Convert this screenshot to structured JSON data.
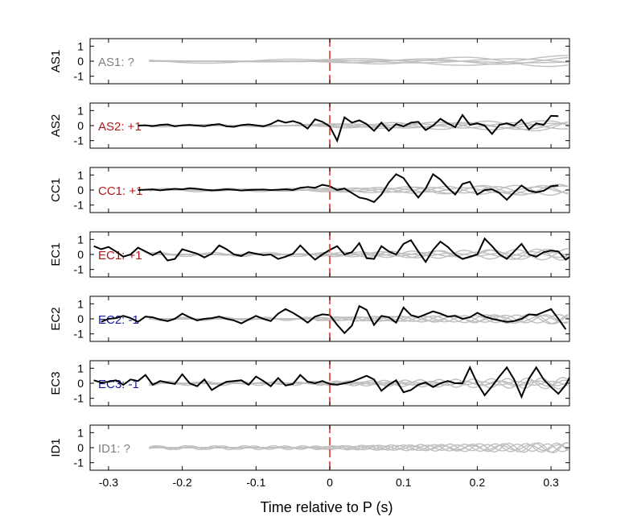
{
  "chart_data": {
    "type": "line",
    "xlabel": "Time relative to P (s)",
    "xlim": [
      -0.325,
      0.325
    ],
    "ylim": [
      -1.5,
      1.5
    ],
    "xticks": [
      -0.3,
      -0.2,
      -0.1,
      0,
      0.1,
      0.2,
      0.3
    ],
    "xtick_labels": [
      "-0.3",
      "-0.2",
      "-0.1",
      "0",
      "0.1",
      "0.2",
      "0.3"
    ],
    "yticks": [
      -1,
      0,
      1
    ],
    "ytick_labels": [
      "-1",
      "0",
      "1"
    ],
    "marker_x": 0,
    "colors": {
      "background_trace": "#bfbfbf",
      "main_trace": "#000000",
      "marker": "#e8332a",
      "positive": "#b01818",
      "negative": "#1a1aaa",
      "unknown": "#808080"
    },
    "panels": [
      {
        "station": "AS1",
        "annotation": "AS1: ?",
        "polarity": "unknown",
        "main": null
      },
      {
        "station": "AS2",
        "annotation": "AS2: +1",
        "polarity": "positive",
        "main": {
          "t0": -0.26,
          "dt": 0.01,
          "values": [
            0.0,
            0.02,
            -0.03,
            0.05,
            0.08,
            -0.05,
            0.02,
            0.05,
            0.0,
            -0.04,
            0.05,
            0.1,
            -0.05,
            -0.08,
            0.03,
            0.08,
            0.02,
            -0.05,
            0.1,
            0.35,
            0.2,
            0.3,
            0.15,
            -0.2,
            0.42,
            0.25,
            -0.05,
            -1.0,
            0.55,
            0.2,
            0.35,
            0.1,
            -0.35,
            0.2,
            -0.35,
            0.1,
            -0.05,
            0.2,
            0.25,
            -0.3,
            0.0,
            0.45,
            0.15,
            -0.1,
            0.7,
            0.05,
            0.15,
            0.0,
            -0.55,
            0.05,
            0.15,
            0.0,
            0.4,
            -0.25,
            0.15,
            0.05,
            0.65,
            0.63
          ]
        }
      },
      {
        "station": "CC1",
        "annotation": "CC1: +1",
        "polarity": "positive",
        "main": {
          "t0": -0.26,
          "dt": 0.01,
          "values": [
            0.0,
            0.02,
            0.05,
            -0.02,
            0.03,
            0.08,
            0.05,
            0.12,
            0.08,
            0.02,
            -0.02,
            0.0,
            0.05,
            0.02,
            -0.03,
            0.0,
            0.02,
            0.03,
            0.0,
            0.02,
            0.05,
            0.0,
            0.15,
            0.2,
            0.15,
            0.35,
            0.25,
            0.0,
            0.1,
            -0.2,
            -0.5,
            -0.6,
            -0.8,
            -0.3,
            0.5,
            1.05,
            0.8,
            0.1,
            -0.5,
            0.1,
            1.05,
            0.7,
            0.15,
            -0.3,
            0.4,
            0.55,
            -0.3,
            0.0,
            0.05,
            -0.2,
            -0.65,
            -0.15,
            0.3,
            -0.05,
            -0.15,
            -0.05,
            0.25,
            0.3
          ]
        }
      },
      {
        "station": "EC1",
        "annotation": "EC1: +1",
        "polarity": "positive",
        "main": {
          "t0": -0.32,
          "dt": 0.01,
          "values": [
            0.55,
            0.35,
            0.5,
            0.2,
            -0.15,
            0.0,
            0.45,
            0.2,
            -0.05,
            0.2,
            -0.4,
            -0.3,
            0.35,
            0.2,
            0.05,
            -0.2,
            0.05,
            0.6,
            0.35,
            0.0,
            -0.1,
            0.15,
            0.05,
            -0.05,
            0.0,
            -0.3,
            -0.15,
            0.05,
            0.6,
            0.1,
            -0.35,
            0.0,
            0.3,
            0.55,
            0.0,
            0.15,
            0.75,
            -0.25,
            -0.3,
            0.55,
            0.2,
            0.0,
            0.7,
            0.95,
            0.2,
            -0.5,
            0.3,
            0.85,
            0.5,
            0.0,
            -0.3,
            -0.15,
            0.0,
            1.05,
            0.55,
            0.0,
            -0.3,
            0.2,
            0.7,
            0.0,
            -0.15,
            0.15,
            0.25,
            0.2,
            -0.35,
            0.0,
            0.3,
            0.1,
            -0.5,
            0.0,
            0.2,
            0.05,
            0.6,
            -0.4
          ]
        }
      },
      {
        "station": "EC2",
        "annotation": "EC2: -1",
        "polarity": "negative",
        "main": {
          "t0": -0.31,
          "dt": 0.01,
          "values": [
            -0.2,
            0.0,
            0.05,
            0.2,
            0.05,
            -0.2,
            0.15,
            0.1,
            -0.05,
            -0.15,
            0.0,
            0.35,
            0.1,
            -0.1,
            0.0,
            0.05,
            0.15,
            0.0,
            -0.1,
            -0.3,
            -0.05,
            0.2,
            0.0,
            -0.15,
            0.35,
            0.65,
            0.4,
            0.1,
            -0.25,
            0.15,
            0.3,
            0.25,
            -0.4,
            -0.95,
            -0.45,
            0.85,
            0.6,
            -0.4,
            0.2,
            0.1,
            -0.25,
            0.75,
            0.25,
            0.1,
            0.3,
            0.5,
            0.35,
            0.15,
            0.2,
            0.0,
            0.1,
            0.4,
            0.15,
            0.0,
            -0.1,
            -0.2,
            -0.15,
            0.0,
            0.3,
            0.25,
            0.45,
            0.65,
            0.0,
            -0.7
          ]
        }
      },
      {
        "station": "EC3",
        "annotation": "EC3: -1",
        "polarity": "negative",
        "main": {
          "t0": -0.32,
          "dt": 0.01,
          "values": [
            0.2,
            0.05,
            0.1,
            0.2,
            -0.1,
            0.25,
            0.15,
            0.55,
            -0.1,
            0.15,
            0.05,
            -0.05,
            0.6,
            0.0,
            -0.2,
            0.25,
            -0.45,
            -0.15,
            0.1,
            0.15,
            0.2,
            -0.1,
            0.45,
            0.15,
            -0.2,
            0.35,
            -0.15,
            -0.05,
            0.55,
            0.1,
            0.0,
            0.15,
            -0.05,
            -0.1,
            0.0,
            0.1,
            0.3,
            0.5,
            0.25,
            -0.5,
            -0.1,
            0.2,
            -0.6,
            -0.45,
            -0.1,
            0.05,
            -0.25,
            0.0,
            0.15,
            0.0,
            0.0,
            1.05,
            0.0,
            -0.8,
            -0.2,
            0.45,
            1.05,
            0.25,
            -0.9,
            0.3,
            1.05,
            0.25,
            -0.25,
            -0.7,
            -0.1,
            0.85,
            0.2,
            -0.1,
            0.0,
            -0.1,
            0.05,
            0.0,
            -0.1,
            0.2
          ]
        }
      },
      {
        "station": "ID1",
        "annotation": "ID1: ?",
        "polarity": "unknown",
        "main": null
      }
    ]
  }
}
